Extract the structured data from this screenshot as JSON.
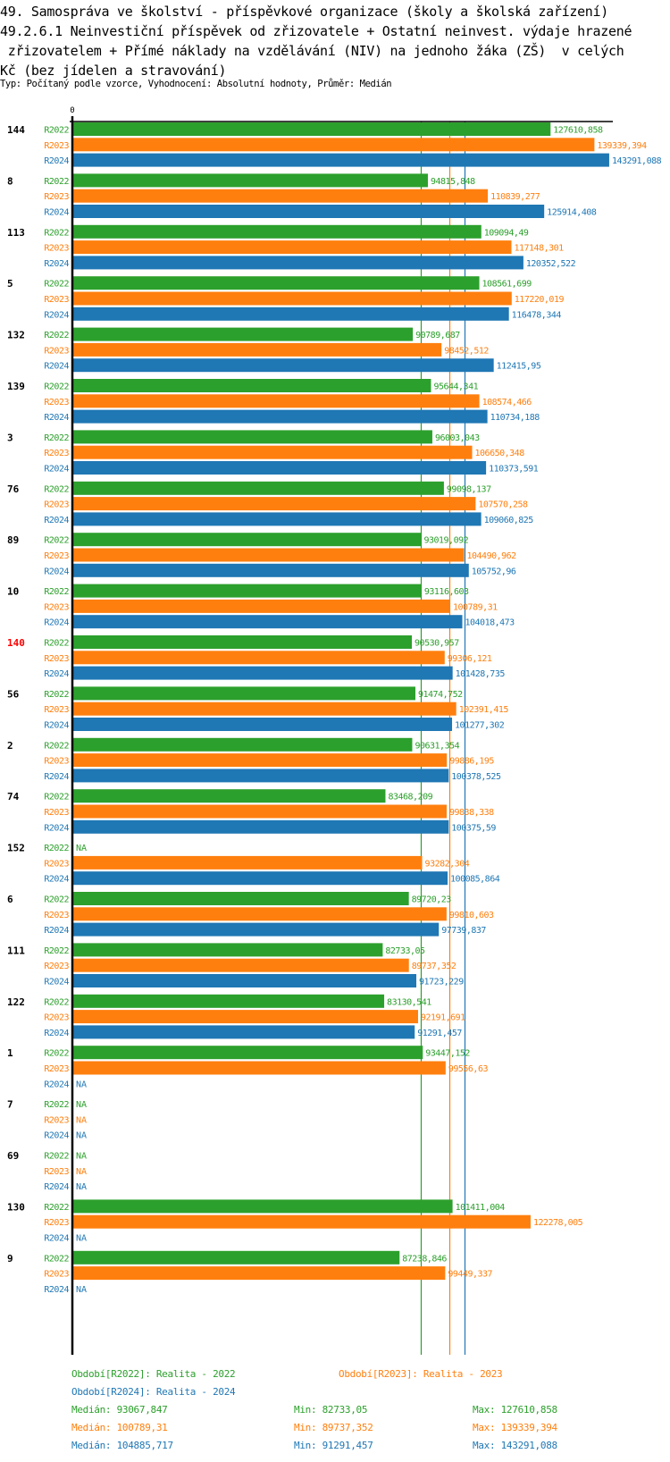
{
  "title_lines": [
    "49. Samospráva ve školství - příspěvkové organizace (školy a školská zařízení)",
    "49.2.6.1 Neinvestiční příspěvek od zřizovatele + Ostatní neinvest. výdaje hrazené",
    " zřizovatelem + Přímé náklady na vzdělávání (NIV) na jednoho žáka (ZŠ)  v celých",
    "Kč (bez jídelen a stravování)"
  ],
  "subtitle": "Typ: Počítaný podle vzorce, Vyhodnocení: Absolutní hodnoty, Průměr: Medián",
  "colors": {
    "R2022": "#2ca02c",
    "R2023": "#ff7f0e",
    "R2024": "#1f77b4",
    "highlight": "#ff0000",
    "axis": "#000000"
  },
  "chart_data": {
    "type": "bar",
    "orientation": "horizontal",
    "title": "49.2.6.1 Neinvestiční příspěvek od zřizovatele + Ostatní neinvest. výdaje hrazené zřizovatelem + Přímé náklady na vzdělávání (NIV) na jednoho žáka (ZŠ) v celých Kč (bez jídelen a stravování)",
    "x_tick_labels": [
      "0"
    ],
    "xlim": [
      0,
      144500
    ],
    "na_label": "NA",
    "highlighted_category": "140",
    "categories": [
      "144",
      "8",
      "113",
      "5",
      "132",
      "139",
      "3",
      "76",
      "89",
      "10",
      "140",
      "56",
      "2",
      "74",
      "152",
      "6",
      "111",
      "122",
      "1",
      "7",
      "69",
      "130",
      "9"
    ],
    "series": [
      {
        "name": "R2022",
        "values": [
          127610.858,
          94815.848,
          109094.49,
          108561.699,
          90789.687,
          95644.341,
          96003.043,
          99098.137,
          93019.092,
          93116.603,
          90530.957,
          91474.752,
          90631.354,
          83468.209,
          null,
          89720.23,
          82733.05,
          83130.541,
          93447.152,
          null,
          null,
          101411.004,
          87238.846
        ],
        "labels": [
          "127610,858",
          "94815,848",
          "109094,49",
          "108561,699",
          "90789,687",
          "95644,341",
          "96003,043",
          "99098,137",
          "93019,092",
          "93116,603",
          "90530,957",
          "91474,752",
          "90631,354",
          "83468,209",
          "NA",
          "89720,23",
          "82733,05",
          "83130,541",
          "93447,152",
          "NA",
          "NA",
          "101411,004",
          "87238,846"
        ]
      },
      {
        "name": "R2023",
        "values": [
          139339.394,
          110839.277,
          117148.301,
          117220.019,
          98452.512,
          108574.466,
          106650.348,
          107570.258,
          104490.962,
          100789.31,
          99306.121,
          102391.415,
          99886.195,
          99838.338,
          93282.304,
          99810.603,
          89737.352,
          92191.691,
          99556.63,
          null,
          null,
          122278.005,
          99449.337
        ],
        "labels": [
          "139339,394",
          "110839,277",
          "117148,301",
          "117220,019",
          "98452,512",
          "108574,466",
          "106650,348",
          "107570,258",
          "104490,962",
          "100789,31",
          "99306,121",
          "102391,415",
          "99886,195",
          "99838,338",
          "93282,304",
          "99810,603",
          "89737,352",
          "92191,691",
          "99556,63",
          "NA",
          "NA",
          "122278,005",
          "99449,337"
        ]
      },
      {
        "name": "R2024",
        "values": [
          143291.088,
          125914.408,
          120352.522,
          116478.344,
          112415.95,
          110734.188,
          110373.591,
          109060.825,
          105752.96,
          104018.473,
          101428.735,
          101277.302,
          100378.525,
          100375.59,
          100085.864,
          97739.837,
          91723.229,
          91291.457,
          null,
          null,
          null,
          null,
          null
        ],
        "labels": [
          "143291,088",
          "125914,408",
          "120352,522",
          "116478,344",
          "112415,95",
          "110734,188",
          "110373,591",
          "109060,825",
          "105752,96",
          "104018,473",
          "101428,735",
          "101277,302",
          "100378,525",
          "100375,59",
          "100085,864",
          "97739,837",
          "91723,229",
          "91291,457",
          "NA",
          "NA",
          "NA",
          "NA",
          "NA"
        ]
      }
    ],
    "medians": {
      "R2022": 93067.847,
      "R2023": 100789.31,
      "R2024": 104885.717
    }
  },
  "legend": {
    "period_R2022": "Období[R2022]: Realita - 2022",
    "period_R2023": "Období[R2023]: Realita - 2023",
    "period_R2024": "Období[R2024]: Realita - 2024",
    "stats": [
      {
        "series": "R2022",
        "median": "Medián: 93067,847",
        "min": "Min: 82733,05",
        "max": "Max: 127610,858"
      },
      {
        "series": "R2023",
        "median": "Medián: 100789,31",
        "min": "Min: 89737,352",
        "max": "Max: 139339,394"
      },
      {
        "series": "R2024",
        "median": "Medián: 104885,717",
        "min": "Min: 91291,457",
        "max": "Max: 143291,088"
      }
    ]
  }
}
